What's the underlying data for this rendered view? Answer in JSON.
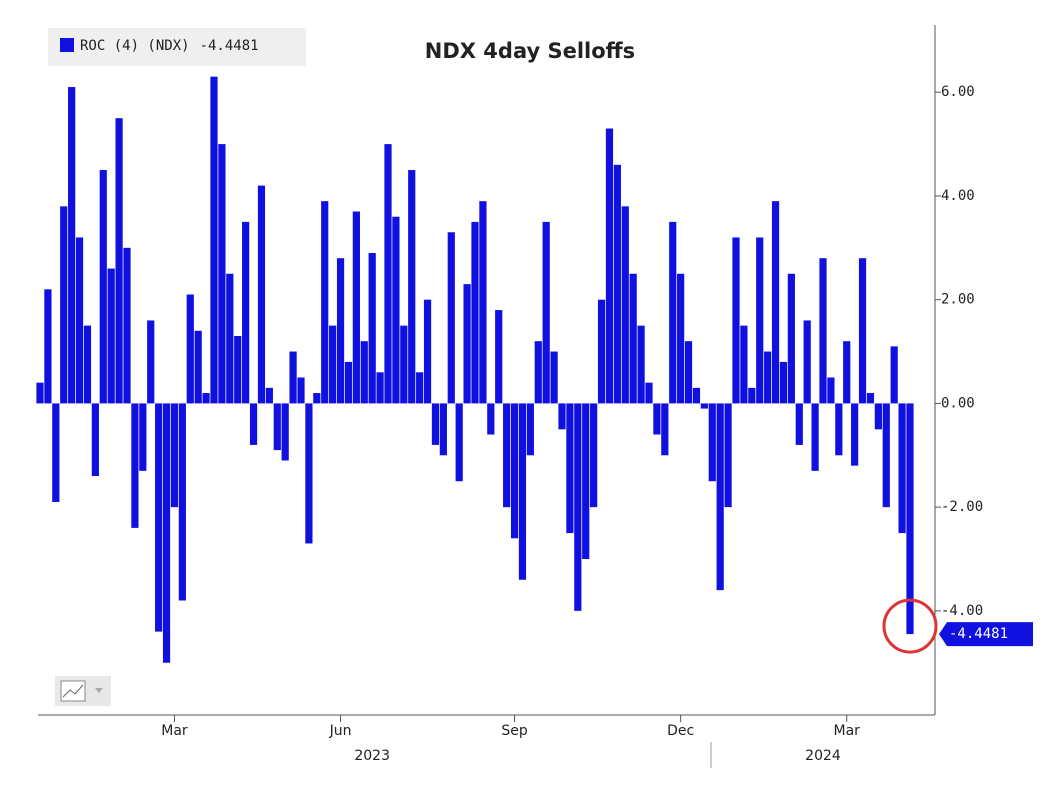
{
  "chart_data": {
    "type": "bar",
    "title": "NDX 4day Selloffs",
    "series": [
      {
        "name": "ROC (4) (NDX)",
        "color": "#1010e0",
        "values": [
          0.4,
          2.2,
          -1.9,
          3.8,
          6.1,
          3.2,
          1.5,
          -1.4,
          4.5,
          2.6,
          5.5,
          3.0,
          -2.4,
          -1.3,
          1.6,
          -4.4,
          -5.0,
          -2.0,
          -3.8,
          2.1,
          1.4,
          0.2,
          6.3,
          5.0,
          2.5,
          1.3,
          3.5,
          -0.8,
          4.2,
          0.3,
          -0.9,
          -1.1,
          1.0,
          0.5,
          -2.7,
          0.2,
          3.9,
          1.5,
          2.8,
          0.8,
          3.7,
          1.2,
          2.9,
          0.6,
          5.0,
          3.6,
          1.5,
          4.5,
          0.6,
          2.0,
          -0.8,
          -1.0,
          3.3,
          -1.5,
          2.3,
          3.5,
          3.9,
          -0.6,
          1.8,
          -2.0,
          -2.6,
          -3.4,
          -1.0,
          1.2,
          3.5,
          1.0,
          -0.5,
          -2.5,
          -4.0,
          -3.0,
          -2.0,
          2.0,
          5.3,
          4.6,
          3.8,
          2.5,
          1.5,
          0.4,
          -0.6,
          -1.0,
          3.5,
          2.5,
          1.2,
          0.3,
          -0.1,
          -1.5,
          -3.6,
          -2.0,
          3.2,
          1.5,
          0.3,
          3.2,
          1.0,
          3.9,
          0.8,
          2.5,
          -0.8,
          1.6,
          -1.3,
          2.8,
          0.5,
          -1.0,
          1.2,
          -1.2,
          2.8,
          0.2,
          -0.5,
          -2.0,
          1.1,
          -2.5,
          -4.4481
        ]
      }
    ],
    "categories": [
      null,
      null,
      null,
      null,
      null,
      null,
      null,
      null,
      null,
      null,
      null,
      null,
      null,
      null,
      null,
      null,
      null,
      "Mar",
      null,
      null,
      null,
      null,
      null,
      null,
      null,
      null,
      null,
      null,
      null,
      null,
      null,
      null,
      null,
      null,
      null,
      null,
      null,
      null,
      "Jun",
      null,
      null,
      null,
      null,
      null,
      null,
      null,
      null,
      null,
      null,
      null,
      null,
      null,
      null,
      null,
      null,
      null,
      null,
      null,
      null,
      null,
      "Sep",
      null,
      null,
      null,
      null,
      null,
      null,
      null,
      null,
      null,
      null,
      null,
      null,
      null,
      null,
      null,
      null,
      null,
      null,
      null,
      null,
      "Dec",
      null,
      null,
      null,
      null,
      null,
      null,
      null,
      null,
      null,
      null,
      null,
      null,
      null,
      null,
      null,
      null,
      null,
      null,
      null,
      null,
      "Mar",
      null,
      null,
      null,
      null,
      null,
      null,
      null,
      null
    ],
    "years": [
      null,
      null,
      null,
      null,
      null,
      null,
      null,
      null,
      null,
      null,
      null,
      null,
      null,
      null,
      null,
      null,
      null,
      null,
      null,
      null,
      null,
      null,
      null,
      null,
      null,
      null,
      null,
      null,
      null,
      null,
      null,
      null,
      null,
      null,
      null,
      null,
      null,
      null,
      null,
      null,
      null,
      null,
      "2023",
      null,
      null,
      null,
      null,
      null,
      null,
      null,
      null,
      null,
      null,
      null,
      null,
      null,
      null,
      null,
      null,
      null,
      null,
      null,
      null,
      null,
      null,
      null,
      null,
      null,
      null,
      null,
      null,
      null,
      null,
      null,
      null,
      null,
      null,
      null,
      null,
      null,
      null,
      null,
      null,
      null,
      null,
      null,
      null,
      null,
      null,
      null,
      null,
      null,
      null,
      null,
      null,
      null,
      null,
      null,
      null,
      "2024",
      null,
      null,
      null,
      null,
      null,
      null,
      null,
      null,
      null,
      null,
      null
    ],
    "ylim": [
      -5.95,
      7.2
    ],
    "yticks": [
      {
        "value": -4,
        "label": "-4.00"
      },
      {
        "value": -2,
        "label": "-2.00"
      },
      {
        "value": 0,
        "label": "0.00"
      },
      {
        "value": 2,
        "label": "2.00"
      },
      {
        "value": 4,
        "label": "4.00"
      },
      {
        "value": 6,
        "label": "6.00"
      }
    ],
    "legend": "top-left"
  }
}
